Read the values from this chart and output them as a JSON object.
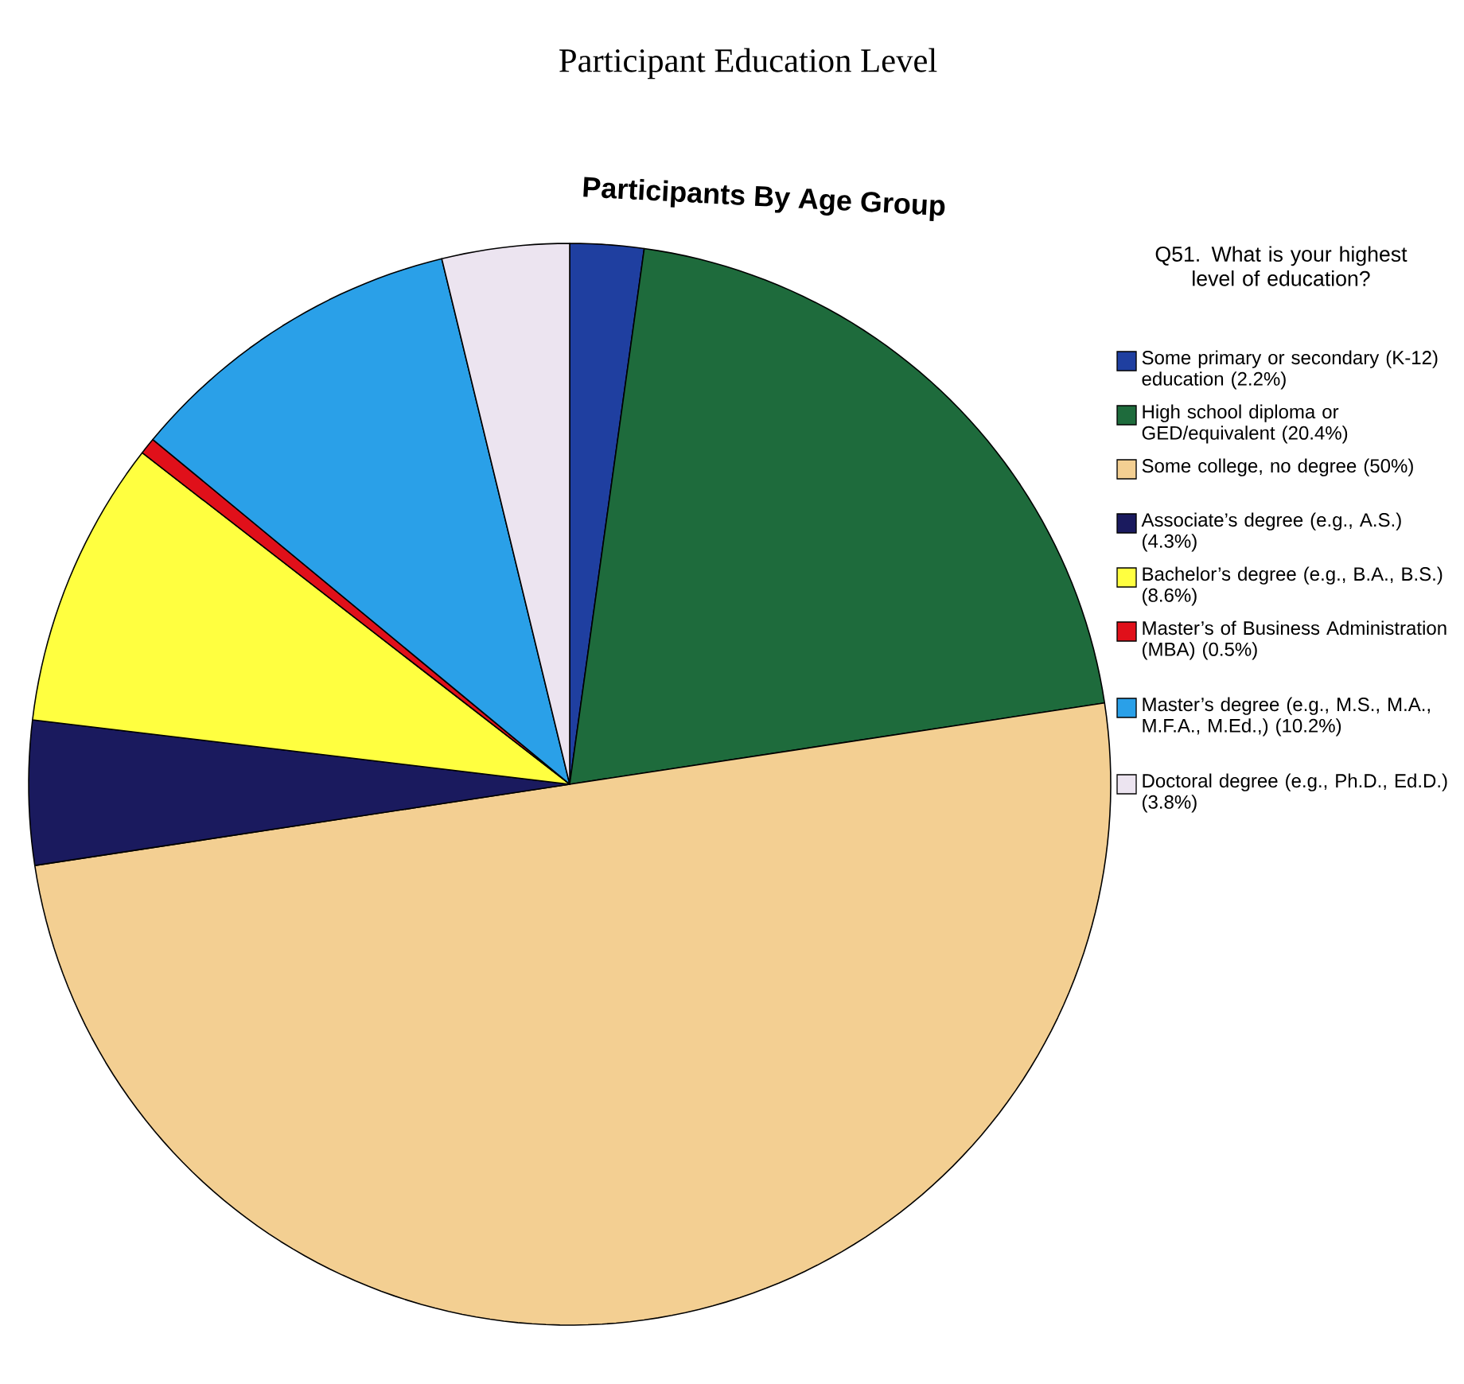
{
  "chart_data": {
    "type": "pie",
    "title": "Participant Education Level",
    "subtitle": "Participants By Age Group",
    "legend_title": "Q51. What is your highest level of education?",
    "legend": "right",
    "categories": [
      "Some primary or secondary (K-12) education (2.2%)",
      "High school diploma or GED/equivalent (20.4%)",
      "Some college, no degree (50%)",
      "Associate’s degree (e.g., A.S.) (4.3%)",
      "Bachelor’s degree (e.g., B.A., B.S.) (8.6%)",
      "Master’s of Business Administration (MBA) (0.5%)",
      "Master’s degree (e.g., M.S., M.A., M.F.A., M.Ed.,) (10.2%)",
      "Doctoral degree (e.g., Ph.D., Ed.D.) (3.8%)"
    ],
    "values": [
      2.2,
      20.4,
      50,
      4.3,
      8.6,
      0.5,
      10.2,
      3.8
    ],
    "colors": [
      "#1f3fa0",
      "#1e6b3c",
      "#f3cf92",
      "#1a1a5e",
      "#ffff40",
      "#e0101a",
      "#2aa0e8",
      "#ece4f0"
    ]
  }
}
